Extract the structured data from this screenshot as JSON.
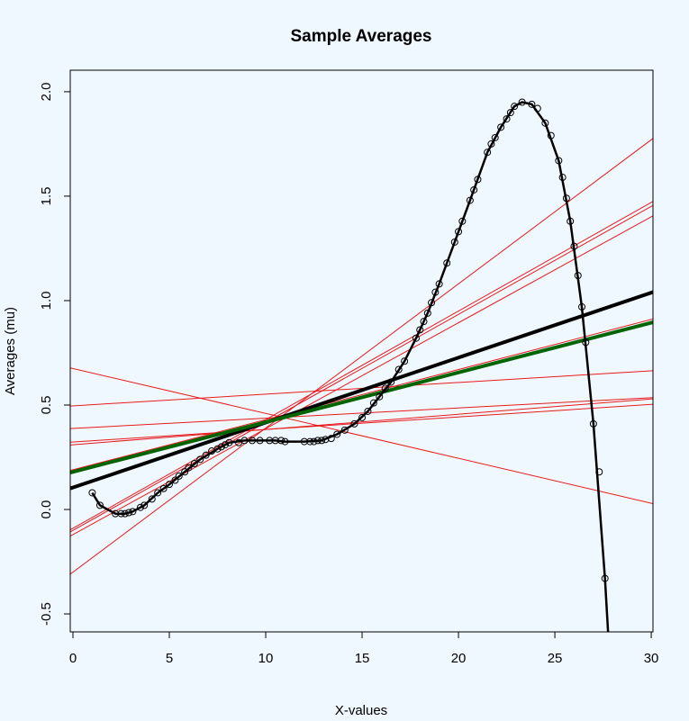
{
  "chart_data": {
    "type": "line",
    "title": "Sample Averages",
    "xlabel": "X-values",
    "ylabel": "Averages (mu)",
    "xlim": [
      -0.14,
      30.09
    ],
    "ylim": [
      -0.586,
      2.103
    ],
    "xticks": [
      0,
      5,
      10,
      15,
      20,
      25,
      30
    ],
    "yticks": [
      -0.5,
      {
        "value": 0,
        "label": "0.0"
      },
      0.5,
      {
        "value": 1,
        "label": "1.0"
      },
      1.5,
      {
        "value": 2,
        "label": "2.0"
      }
    ],
    "ablines": [
      {
        "color": "#e8191c",
        "width": 1,
        "intercept": 0.675,
        "slope": -0.0215
      },
      {
        "color": "#e8191c",
        "width": 1,
        "intercept": -0.3,
        "slope": 0.069
      },
      {
        "color": "#e8191c",
        "width": 1,
        "intercept": -0.09,
        "slope": 0.052
      },
      {
        "color": "#e8191c",
        "width": 1,
        "intercept": -0.1,
        "slope": 0.0517
      },
      {
        "color": "#e8191c",
        "width": 1,
        "intercept": -0.12,
        "slope": 0.0507
      },
      {
        "color": "#e8191c",
        "width": 1,
        "intercept": 0.496,
        "slope": 0.0056
      },
      {
        "color": "#e8191c",
        "width": 1,
        "intercept": 0.388,
        "slope": 0.0049
      },
      {
        "color": "#e8191c",
        "width": 1,
        "intercept": 0.323,
        "slope": 0.006
      },
      {
        "color": "#e8191c",
        "width": 1,
        "intercept": 0.31,
        "slope": 0.0073
      },
      {
        "color": "#e8191c",
        "width": 1,
        "intercept": 0.19,
        "slope": 0.024
      },
      {
        "color": "#000000",
        "width": 4,
        "intercept": 0.105,
        "slope": 0.0311
      },
      {
        "color": "#006400",
        "width": 4,
        "intercept": 0.18,
        "slope": 0.0238
      }
    ],
    "points": {
      "color": "#000000",
      "x": [
        1.0,
        1.4,
        2.2,
        2.5,
        2.7,
        2.9,
        3.1,
        3.5,
        3.7,
        4.1,
        4.4,
        4.7,
        5.0,
        5.3,
        5.5,
        5.8,
        6.0,
        6.3,
        6.6,
        6.9,
        7.2,
        7.5,
        7.7,
        7.9,
        8.1,
        8.6,
        8.9,
        9.3,
        9.7,
        10.2,
        10.5,
        10.8,
        11.0,
        12.0,
        12.3,
        12.5,
        12.7,
        12.9,
        13.1,
        13.4,
        13.7,
        14.1,
        14.6,
        15.0,
        15.3,
        15.6,
        15.9,
        16.2,
        16.5,
        16.9,
        17.2,
        17.8,
        18.0,
        18.2,
        18.4,
        18.6,
        18.8,
        19.0,
        19.4,
        19.8,
        20.0,
        20.2,
        20.6,
        20.8,
        21.0,
        21.5,
        21.7,
        21.9,
        22.2,
        22.5,
        22.7,
        22.9,
        23.3,
        23.8,
        24.1,
        24.5,
        24.8,
        25.2,
        25.4,
        25.6,
        25.8,
        26.0,
        26.2,
        26.4,
        26.6,
        27.0,
        27.3,
        27.6
      ],
      "values": [
        0.08,
        0.02,
        -0.02,
        -0.02,
        -0.02,
        -0.015,
        -0.01,
        0.01,
        0.02,
        0.05,
        0.08,
        0.1,
        0.12,
        0.14,
        0.16,
        0.18,
        0.2,
        0.22,
        0.24,
        0.26,
        0.28,
        0.29,
        0.3,
        0.31,
        0.32,
        0.32,
        0.33,
        0.33,
        0.33,
        0.33,
        0.33,
        0.33,
        0.325,
        0.325,
        0.325,
        0.325,
        0.33,
        0.33,
        0.335,
        0.34,
        0.36,
        0.38,
        0.41,
        0.44,
        0.47,
        0.51,
        0.54,
        0.58,
        0.61,
        0.67,
        0.71,
        0.82,
        0.86,
        0.9,
        0.94,
        0.99,
        1.04,
        1.08,
        1.18,
        1.28,
        1.33,
        1.38,
        1.48,
        1.53,
        1.58,
        1.71,
        1.75,
        1.78,
        1.83,
        1.87,
        1.9,
        1.93,
        1.95,
        1.94,
        1.92,
        1.85,
        1.79,
        1.67,
        1.59,
        1.49,
        1.38,
        1.26,
        1.12,
        0.97,
        0.8,
        0.41,
        0.18,
        -0.33
      ]
    },
    "curve": {
      "color": "#000000",
      "width": 2.5,
      "x": [
        1.0,
        1.4,
        2.2,
        2.7,
        3.1,
        3.7,
        4.4,
        5.0,
        5.8,
        6.6,
        7.5,
        8.1,
        8.9,
        9.7,
        10.5,
        11.0,
        12.0,
        12.9,
        13.7,
        14.6,
        15.3,
        15.9,
        16.5,
        17.2,
        17.8,
        18.4,
        19.0,
        19.8,
        20.6,
        21.5,
        22.2,
        22.9,
        23.3,
        23.8,
        24.5,
        25.2,
        25.8,
        26.4,
        27.0,
        27.6,
        27.8
      ],
      "values": [
        0.08,
        0.02,
        -0.02,
        -0.02,
        -0.01,
        0.02,
        0.08,
        0.12,
        0.18,
        0.24,
        0.29,
        0.32,
        0.33,
        0.33,
        0.33,
        0.325,
        0.325,
        0.33,
        0.36,
        0.41,
        0.47,
        0.54,
        0.61,
        0.71,
        0.82,
        0.94,
        1.08,
        1.28,
        1.48,
        1.71,
        1.83,
        1.93,
        1.95,
        1.94,
        1.85,
        1.67,
        1.38,
        0.97,
        0.41,
        -0.33,
        -0.65
      ]
    }
  }
}
